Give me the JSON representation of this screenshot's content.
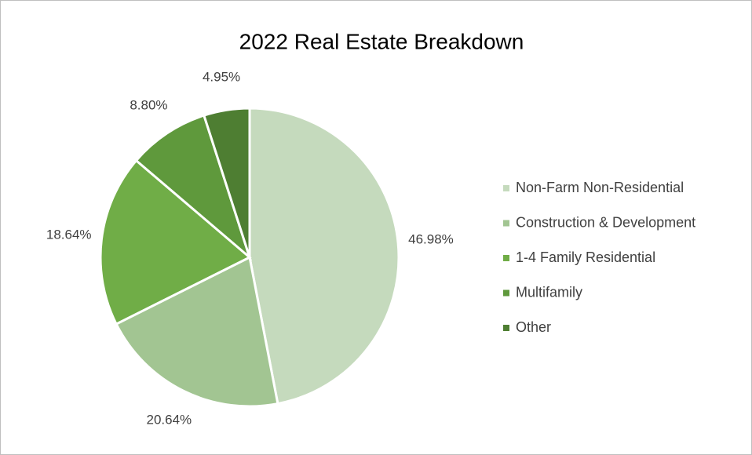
{
  "chart_data": {
    "type": "pie",
    "title": "2022 Real Estate Breakdown",
    "categories": [
      "Non-Farm Non-Residential",
      "Construction & Development",
      "1-4 Family Residential",
      "Multifamily",
      "Other"
    ],
    "values": [
      46.98,
      20.64,
      18.64,
      8.8,
      4.95
    ],
    "value_labels": [
      "46.98%",
      "20.64%",
      "18.64%",
      "8.80%",
      "4.95%"
    ],
    "colors": [
      "#c5dabd",
      "#a2c592",
      "#70ad47",
      "#5f993c",
      "#4e7e32"
    ],
    "legend": "right"
  }
}
